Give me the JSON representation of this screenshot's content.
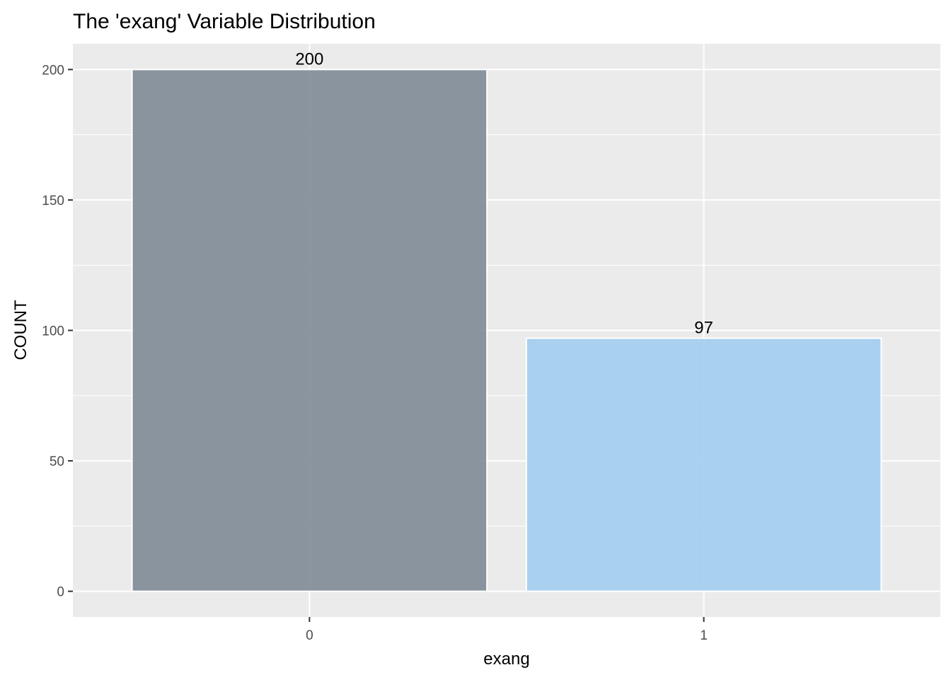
{
  "chart_data": {
    "type": "bar",
    "title": "The 'exang' Variable Distribution",
    "xlabel": "exang",
    "ylabel": "COUNT",
    "categories": [
      "0",
      "1"
    ],
    "values": [
      200,
      97
    ],
    "data_labels": [
      "200",
      "97"
    ],
    "bar_colors": [
      "#808b96",
      "#a2cdf0"
    ],
    "ylim": [
      -9.85,
      209.85
    ],
    "yticks": [
      0,
      50,
      100,
      150,
      200
    ],
    "ytick_labels": [
      "0",
      "50",
      "100",
      "150",
      "200"
    ],
    "grid": true,
    "legend": "none",
    "panel_background": "#ebebeb",
    "grid_color": "#ffffff"
  }
}
